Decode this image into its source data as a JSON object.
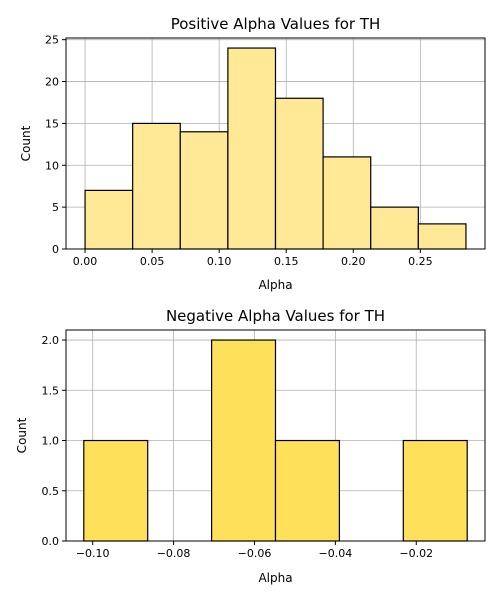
{
  "chart_data": [
    {
      "type": "bar",
      "title": "Positive Alpha Values for TH",
      "xlabel": "Alpha",
      "ylabel": "Count",
      "bar_color": "#ffe896",
      "bin_edges": [
        0.0,
        0.0355,
        0.071,
        0.1065,
        0.142,
        0.1775,
        0.213,
        0.2485,
        0.284
      ],
      "values": [
        7,
        15,
        14,
        24,
        18,
        11,
        5,
        3
      ],
      "xlim": [
        -0.0142,
        0.2982
      ],
      "ylim": [
        0,
        25.2
      ],
      "xticks": [
        0.0,
        0.05,
        0.1,
        0.15,
        0.2,
        0.25
      ],
      "xtick_labels": [
        "0.00",
        "0.05",
        "0.10",
        "0.15",
        "0.20",
        "0.25"
      ],
      "yticks": [
        0,
        5,
        10,
        15,
        20,
        25
      ],
      "ytick_labels": [
        "0",
        "5",
        "10",
        "15",
        "20",
        "25"
      ],
      "grid": true
    },
    {
      "type": "bar",
      "title": "Negative Alpha Values for TH",
      "xlabel": "Alpha",
      "ylabel": "Count",
      "bar_color": "#ffe05a",
      "bin_edges": [
        -0.1022,
        -0.0864,
        -0.0706,
        -0.0548,
        -0.039,
        -0.0232,
        -0.0074
      ],
      "values": [
        1,
        0,
        2,
        1,
        0,
        1
      ],
      "xlim": [
        -0.1066,
        -0.003
      ],
      "ylim": [
        0,
        2.1
      ],
      "xticks": [
        -0.1,
        -0.08,
        -0.06,
        -0.04,
        -0.02
      ],
      "xtick_labels": [
        "−0.10",
        "−0.08",
        "−0.06",
        "−0.04",
        "−0.02"
      ],
      "yticks": [
        0,
        0.5,
        1.0,
        1.5,
        2.0
      ],
      "ytick_labels": [
        "0.0",
        "0.5",
        "1.0",
        "1.5",
        "2.0"
      ],
      "grid": true
    }
  ]
}
